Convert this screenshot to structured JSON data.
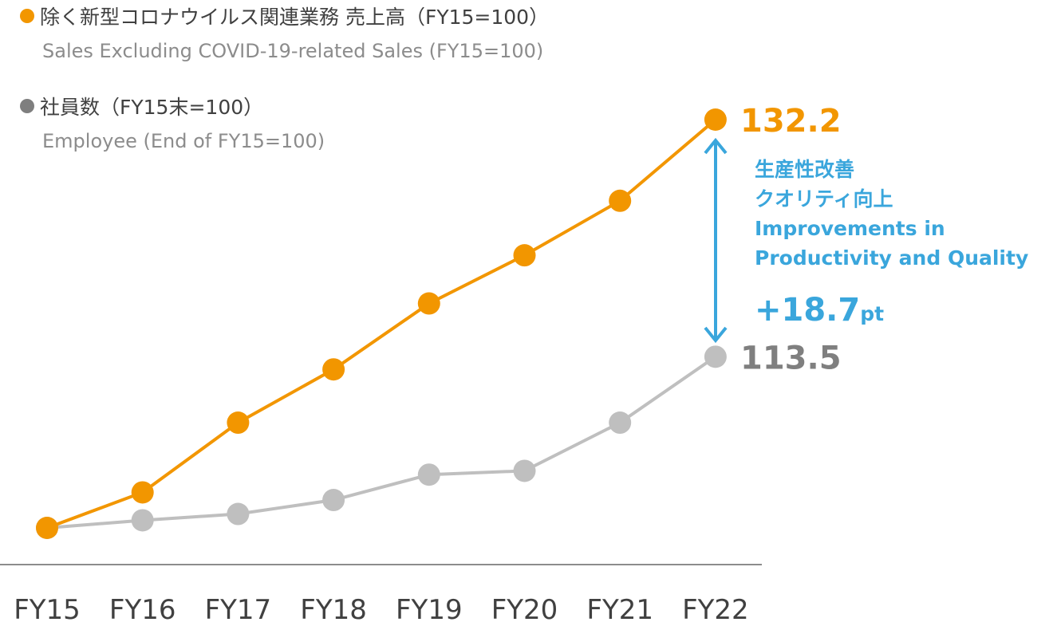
{
  "chart_data": {
    "type": "line",
    "categories": [
      "FY15",
      "FY16",
      "FY17",
      "FY18",
      "FY19",
      "FY20",
      "FY21",
      "FY22"
    ],
    "series": [
      {
        "name": "除く新型コロナウイルス関連業務 売上高（FY15=100）",
        "name_en": "Sales Excluding COVID-19-related Sales (FY15=100)",
        "color": "#f29600",
        "values": [
          100,
          102.8,
          108.3,
          112.5,
          117.7,
          121.5,
          125.8,
          132.2
        ]
      },
      {
        "name": "社員数（FY15末=100）",
        "name_en": "Employee (End of FY15=100)",
        "color": "#bfbfbf",
        "label_color": "#7f7f7f",
        "values": [
          100,
          100.6,
          101.1,
          102.2,
          104.2,
          104.5,
          108.3,
          113.5
        ]
      }
    ],
    "ylim": [
      100,
      132.2
    ],
    "annotation": {
      "lines": [
        "生産性改善",
        "クオリティ向上",
        "Improvements in",
        "Productivity and Quality"
      ],
      "difference": "+18.7",
      "unit": "pt",
      "color": "#3aa6dc"
    }
  }
}
